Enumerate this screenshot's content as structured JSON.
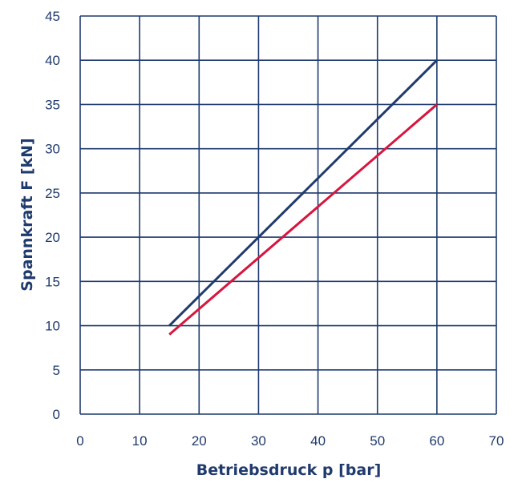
{
  "chart_data": {
    "type": "line",
    "title": "",
    "xlabel": "Betriebsdruck p [bar]",
    "ylabel": "Spannkraft F [kN]",
    "xlim": [
      0,
      70
    ],
    "ylim": [
      0,
      45
    ],
    "xticks": [
      0,
      10,
      20,
      30,
      40,
      50,
      60,
      70
    ],
    "yticks": [
      0,
      5,
      10,
      15,
      20,
      25,
      30,
      35,
      40,
      45
    ],
    "grid": true,
    "legend": "none",
    "series": [
      {
        "color": "#1f3a6d",
        "x": [
          15,
          60
        ],
        "y": [
          10,
          40
        ]
      },
      {
        "color": "#d6163e",
        "x": [
          15,
          60
        ],
        "y": [
          9,
          35
        ]
      }
    ]
  },
  "colors": {
    "grid": "#1f3a6d",
    "text": "#1f3a6d"
  }
}
